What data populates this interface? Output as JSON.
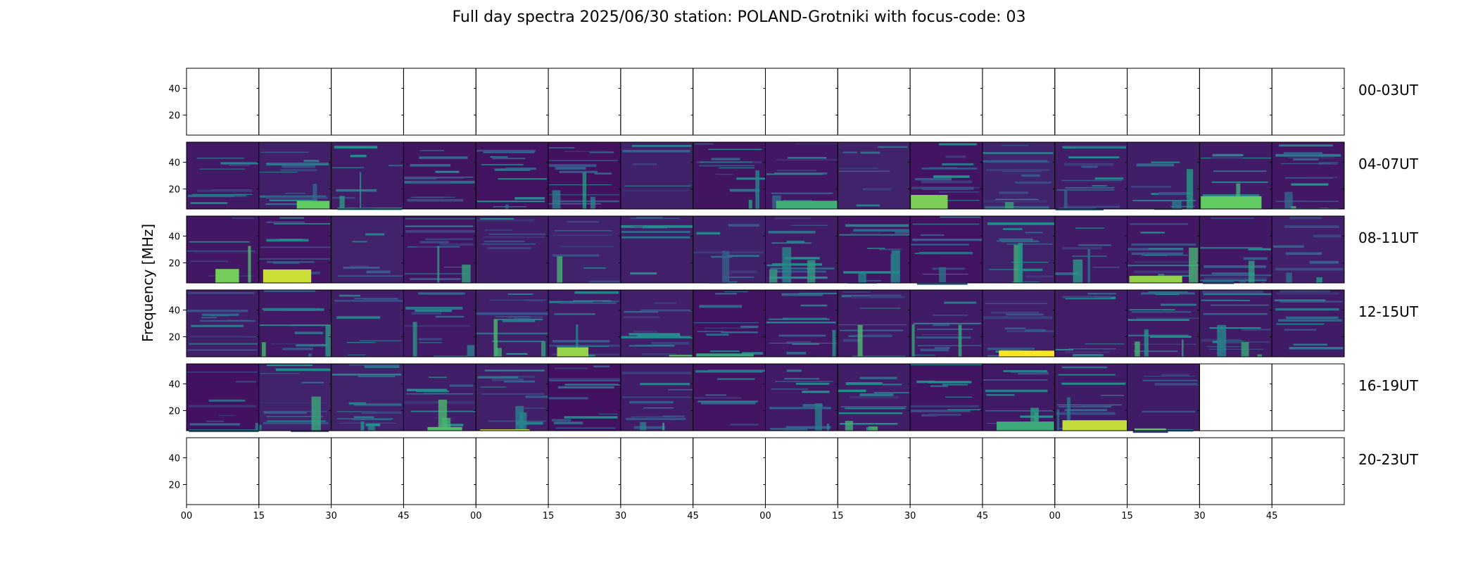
{
  "chart_data": {
    "type": "heatmap",
    "title": "Full day spectra 2025/06/30 station: POLAND-Grotniki with focus-code: 03",
    "ylabel": "Frequency [MHz]",
    "xlabel": "",
    "colormap": "viridis",
    "colors": {
      "low": "#440154",
      "mid": "#21918c",
      "high": "#fde725"
    },
    "ylim": [
      5,
      55
    ],
    "yticks": [
      20,
      40
    ],
    "xtick_labels": [
      "00",
      "15",
      "30",
      "45",
      "00",
      "15",
      "30",
      "45",
      "00",
      "15",
      "30",
      "45",
      "00",
      "15",
      "30",
      "45"
    ],
    "panels_per_row": 16,
    "rows": [
      {
        "label": "00-03UT",
        "data_panels": 0
      },
      {
        "label": "04-07UT",
        "data_panels": 16
      },
      {
        "label": "08-11UT",
        "data_panels": 16
      },
      {
        "label": "12-15UT",
        "data_panels": 16
      },
      {
        "label": "16-19UT",
        "data_panels": 14
      },
      {
        "label": "20-23UT",
        "data_panels": 0
      }
    ]
  }
}
